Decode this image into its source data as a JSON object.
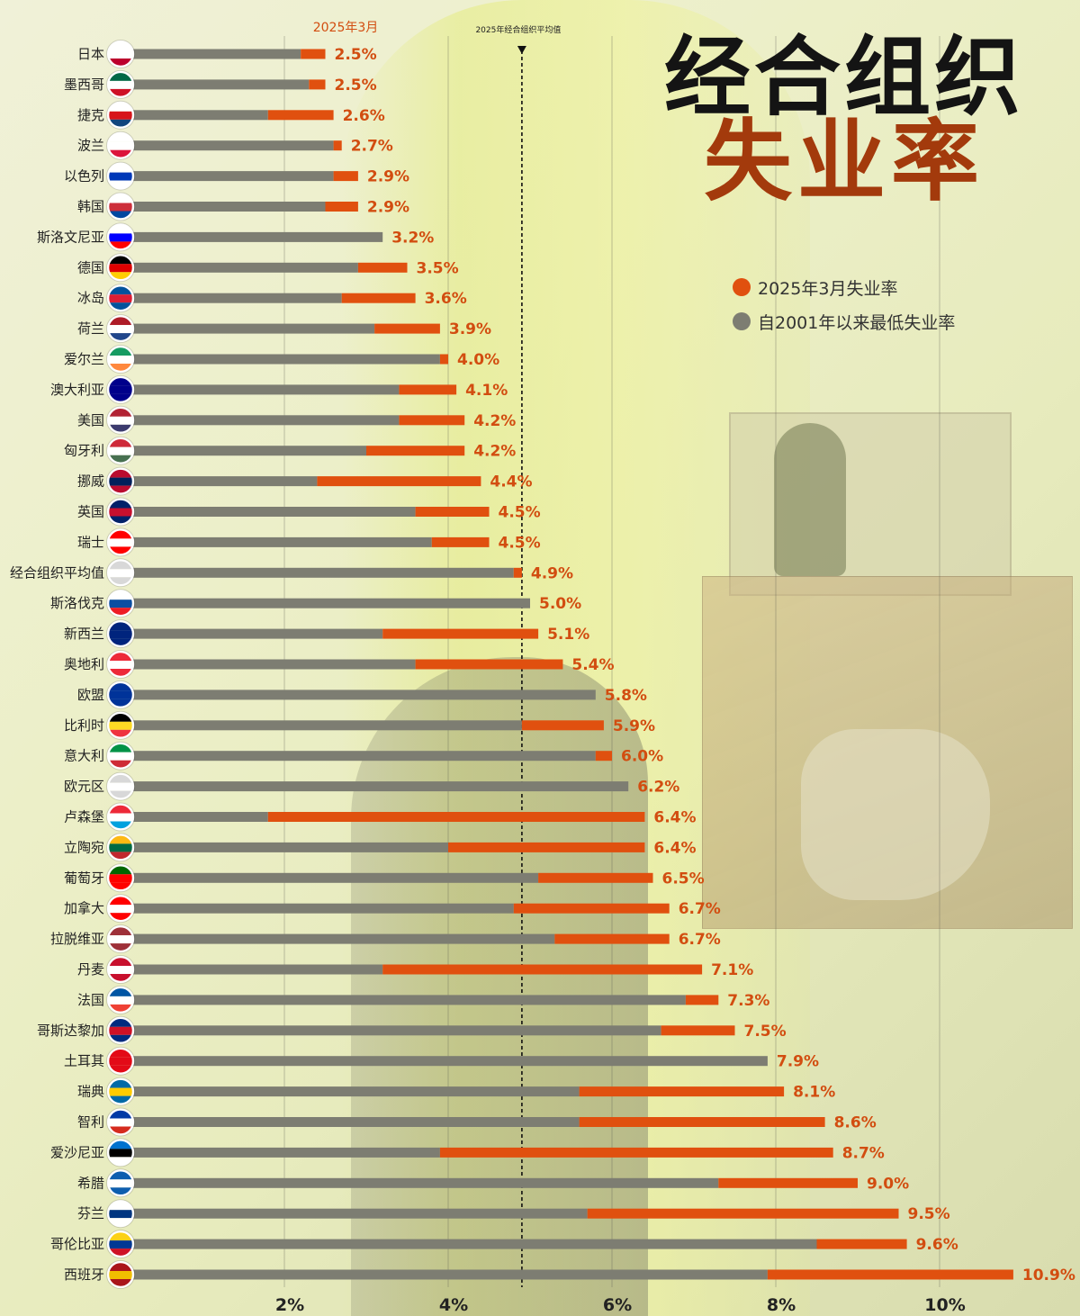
{
  "title": "经合组织",
  "subtitle": "失业率",
  "legend": {
    "current_label": "2025年3月失业率",
    "lowest_label": "自2001年以来最低失业率",
    "current_color": "#e0500f",
    "lowest_color": "#7d7d72"
  },
  "chart_data": {
    "type": "bar",
    "orientation": "horizontal",
    "top_label": "2025年3月",
    "reference_line": {
      "label": "2025年经合组织平均值",
      "value": 4.9
    },
    "x_ticks": [
      "2%",
      "4%",
      "6%",
      "8%",
      "10%"
    ],
    "x_tick_values": [
      2,
      4,
      6,
      8,
      10
    ],
    "xlim": [
      0,
      11
    ],
    "series": [
      {
        "name": "2025年3月失业率"
      },
      {
        "name": "自2001年以来最低失业率"
      }
    ],
    "rows": [
      {
        "country": "日本",
        "lowest": 2.2,
        "current": 2.5,
        "label": "2.5%",
        "flag": [
          "#ffffff",
          "#ffffff",
          "#bc002d"
        ]
      },
      {
        "country": "墨西哥",
        "lowest": 2.3,
        "current": 2.5,
        "label": "2.5%",
        "flag": [
          "#006847",
          "#ffffff",
          "#ce1126"
        ]
      },
      {
        "country": "捷克",
        "lowest": 1.8,
        "current": 2.6,
        "label": "2.6%",
        "flag": [
          "#ffffff",
          "#d7141a",
          "#11457e"
        ]
      },
      {
        "country": "波兰",
        "lowest": 2.6,
        "current": 2.7,
        "label": "2.7%",
        "flag": [
          "#ffffff",
          "#ffffff",
          "#dc143c"
        ]
      },
      {
        "country": "以色列",
        "lowest": 2.6,
        "current": 2.9,
        "label": "2.9%",
        "flag": [
          "#ffffff",
          "#0038b8",
          "#ffffff"
        ]
      },
      {
        "country": "韩国",
        "lowest": 2.5,
        "current": 2.9,
        "label": "2.9%",
        "flag": [
          "#ffffff",
          "#cd2e3a",
          "#0047a0"
        ]
      },
      {
        "country": "斯洛文尼亚",
        "lowest": 3.2,
        "current": 3.2,
        "label": "3.2%",
        "flag": [
          "#ffffff",
          "#0000ff",
          "#ff0000"
        ]
      },
      {
        "country": "德国",
        "lowest": 2.9,
        "current": 3.5,
        "label": "3.5%",
        "flag": [
          "#000000",
          "#dd0000",
          "#ffce00"
        ]
      },
      {
        "country": "冰岛",
        "lowest": 2.7,
        "current": 3.6,
        "label": "3.6%",
        "flag": [
          "#02529c",
          "#dc1e35",
          "#02529c"
        ]
      },
      {
        "country": "荷兰",
        "lowest": 3.1,
        "current": 3.9,
        "label": "3.9%",
        "flag": [
          "#ae1c28",
          "#ffffff",
          "#21468b"
        ]
      },
      {
        "country": "爱尔兰",
        "lowest": 3.9,
        "current": 4.0,
        "label": "4.0%",
        "flag": [
          "#169b62",
          "#ffffff",
          "#ff883e"
        ]
      },
      {
        "country": "澳大利亚",
        "lowest": 3.4,
        "current": 4.1,
        "label": "4.1%",
        "flag": [
          "#00008b",
          "#00008b",
          "#00008b"
        ]
      },
      {
        "country": "美国",
        "lowest": 3.4,
        "current": 4.2,
        "label": "4.2%",
        "flag": [
          "#b22234",
          "#ffffff",
          "#3c3b6e"
        ]
      },
      {
        "country": "匈牙利",
        "lowest": 3.0,
        "current": 4.2,
        "label": "4.2%",
        "flag": [
          "#ce2939",
          "#ffffff",
          "#477050"
        ]
      },
      {
        "country": "挪威",
        "lowest": 2.4,
        "current": 4.4,
        "label": "4.4%",
        "flag": [
          "#ba0c2f",
          "#00205b",
          "#ba0c2f"
        ]
      },
      {
        "country": "英国",
        "lowest": 3.6,
        "current": 4.5,
        "label": "4.5%",
        "flag": [
          "#012169",
          "#c8102e",
          "#012169"
        ]
      },
      {
        "country": "瑞士",
        "lowest": 3.8,
        "current": 4.5,
        "label": "4.5%",
        "flag": [
          "#ff0000",
          "#ffffff",
          "#ff0000"
        ]
      },
      {
        "country": "经合组织平均值",
        "lowest": 4.8,
        "current": 4.9,
        "label": "4.9%",
        "flag": [
          "#d8d8d8",
          "#ffffff",
          "#d8d8d8"
        ]
      },
      {
        "country": "斯洛伐克",
        "lowest": 5.0,
        "current": 5.0,
        "label": "5.0%",
        "flag": [
          "#ffffff",
          "#0b4ea2",
          "#ee1c25"
        ]
      },
      {
        "country": "新西兰",
        "lowest": 3.2,
        "current": 5.1,
        "label": "5.1%",
        "flag": [
          "#00247d",
          "#00247d",
          "#00247d"
        ]
      },
      {
        "country": "奥地利",
        "lowest": 3.6,
        "current": 5.4,
        "label": "5.4%",
        "flag": [
          "#ed2939",
          "#ffffff",
          "#ed2939"
        ]
      },
      {
        "country": "欧盟",
        "lowest": 5.8,
        "current": 5.8,
        "label": "5.8%",
        "flag": [
          "#003399",
          "#003399",
          "#003399"
        ]
      },
      {
        "country": "比利时",
        "lowest": 4.9,
        "current": 5.9,
        "label": "5.9%",
        "flag": [
          "#000000",
          "#fdda24",
          "#ef3340"
        ]
      },
      {
        "country": "意大利",
        "lowest": 5.8,
        "current": 6.0,
        "label": "6.0%",
        "flag": [
          "#009246",
          "#ffffff",
          "#ce2b37"
        ]
      },
      {
        "country": "欧元区",
        "lowest": 6.2,
        "current": 6.2,
        "label": "6.2%",
        "flag": [
          "#d8d8d8",
          "#ffffff",
          "#d8d8d8"
        ]
      },
      {
        "country": "卢森堡",
        "lowest": 1.8,
        "current": 6.4,
        "label": "6.4%",
        "flag": [
          "#ed2939",
          "#ffffff",
          "#00a1de"
        ]
      },
      {
        "country": "立陶宛",
        "lowest": 4.0,
        "current": 6.4,
        "label": "6.4%",
        "flag": [
          "#fdb913",
          "#006a44",
          "#c1272d"
        ]
      },
      {
        "country": "葡萄牙",
        "lowest": 5.1,
        "current": 6.5,
        "label": "6.5%",
        "flag": [
          "#006600",
          "#ff0000",
          "#ff0000"
        ]
      },
      {
        "country": "加拿大",
        "lowest": 4.8,
        "current": 6.7,
        "label": "6.7%",
        "flag": [
          "#ff0000",
          "#ffffff",
          "#ff0000"
        ]
      },
      {
        "country": "拉脱维亚",
        "lowest": 5.3,
        "current": 6.7,
        "label": "6.7%",
        "flag": [
          "#9e3039",
          "#ffffff",
          "#9e3039"
        ]
      },
      {
        "country": "丹麦",
        "lowest": 3.2,
        "current": 7.1,
        "label": "7.1%",
        "flag": [
          "#c8102e",
          "#ffffff",
          "#c8102e"
        ]
      },
      {
        "country": "法国",
        "lowest": 6.9,
        "current": 7.3,
        "label": "7.3%",
        "flag": [
          "#0055a4",
          "#ffffff",
          "#ef4135"
        ]
      },
      {
        "country": "哥斯达黎加",
        "lowest": 6.6,
        "current": 7.5,
        "label": "7.5%",
        "flag": [
          "#002b7f",
          "#ce1126",
          "#002b7f"
        ]
      },
      {
        "country": "土耳其",
        "lowest": 7.9,
        "current": 7.9,
        "label": "7.9%",
        "flag": [
          "#e30a17",
          "#e30a17",
          "#e30a17"
        ]
      },
      {
        "country": "瑞典",
        "lowest": 5.6,
        "current": 8.1,
        "label": "8.1%",
        "flag": [
          "#006aa7",
          "#fecc00",
          "#006aa7"
        ]
      },
      {
        "country": "智利",
        "lowest": 5.6,
        "current": 8.6,
        "label": "8.6%",
        "flag": [
          "#0039a6",
          "#ffffff",
          "#d52b1e"
        ]
      },
      {
        "country": "爱沙尼亚",
        "lowest": 3.9,
        "current": 8.7,
        "label": "8.7%",
        "flag": [
          "#0072ce",
          "#000000",
          "#ffffff"
        ]
      },
      {
        "country": "希腊",
        "lowest": 7.3,
        "current": 9.0,
        "label": "9.0%",
        "flag": [
          "#0d5eaf",
          "#ffffff",
          "#0d5eaf"
        ]
      },
      {
        "country": "芬兰",
        "lowest": 5.7,
        "current": 9.5,
        "label": "9.5%",
        "flag": [
          "#ffffff",
          "#003580",
          "#ffffff"
        ]
      },
      {
        "country": "哥伦比亚",
        "lowest": 8.5,
        "current": 9.6,
        "label": "9.6%",
        "flag": [
          "#fcd116",
          "#003893",
          "#ce1126"
        ]
      },
      {
        "country": "西班牙",
        "lowest": 7.9,
        "current": 10.9,
        "label": "10.9%",
        "flag": [
          "#aa151b",
          "#f1bf00",
          "#aa151b"
        ]
      }
    ]
  }
}
